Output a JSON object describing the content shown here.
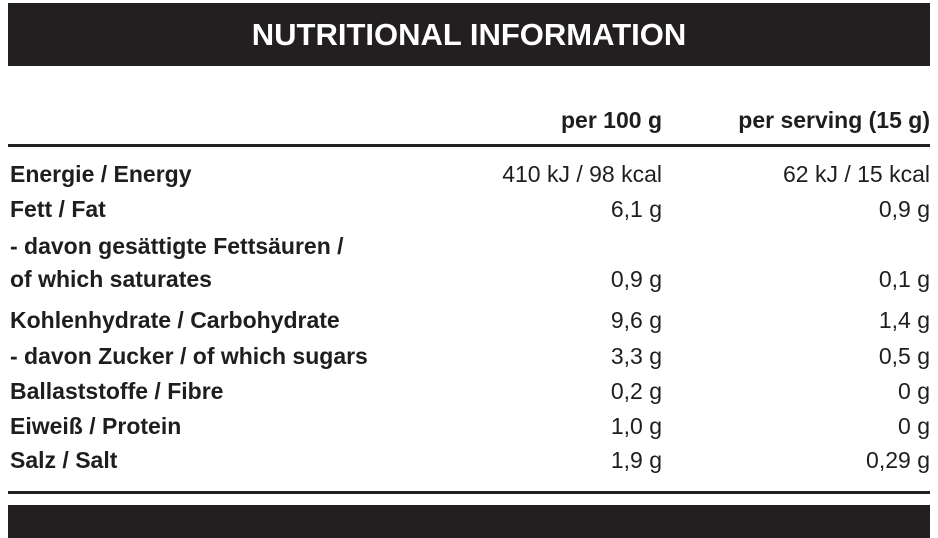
{
  "header": {
    "title": "NUTRITIONAL INFORMATION"
  },
  "table": {
    "columns": [
      "per 100 g",
      "per serving (15 g)"
    ],
    "rows": [
      {
        "label": "Energie / Energy",
        "per_100g": "410 kJ / 98 kcal",
        "per_serving": "62 kJ / 15 kcal"
      },
      {
        "label": "Fett / Fat",
        "per_100g": "6,1 g",
        "per_serving": "0,9 g"
      },
      {
        "label": "- davon gesättigte Fettsäuren /\nof which saturates",
        "per_100g": "0,9 g",
        "per_serving": "0,1 g"
      },
      {
        "label": "Kohlenhydrate / Carbohydrate",
        "per_100g": "9,6 g",
        "per_serving": "1,4 g"
      },
      {
        "label": "- davon Zucker / of which sugars",
        "per_100g": "3,3 g",
        "per_serving": "0,5 g"
      },
      {
        "label": "Ballaststoffe / Fibre",
        "per_100g": "0,2 g",
        "per_serving": "0 g"
      },
      {
        "label": "Eiweiß / Protein",
        "per_100g": "1,0 g",
        "per_serving": "0 g"
      },
      {
        "label": "Salz / Salt",
        "per_100g": "1,9 g",
        "per_serving": "0,29 g"
      }
    ]
  }
}
